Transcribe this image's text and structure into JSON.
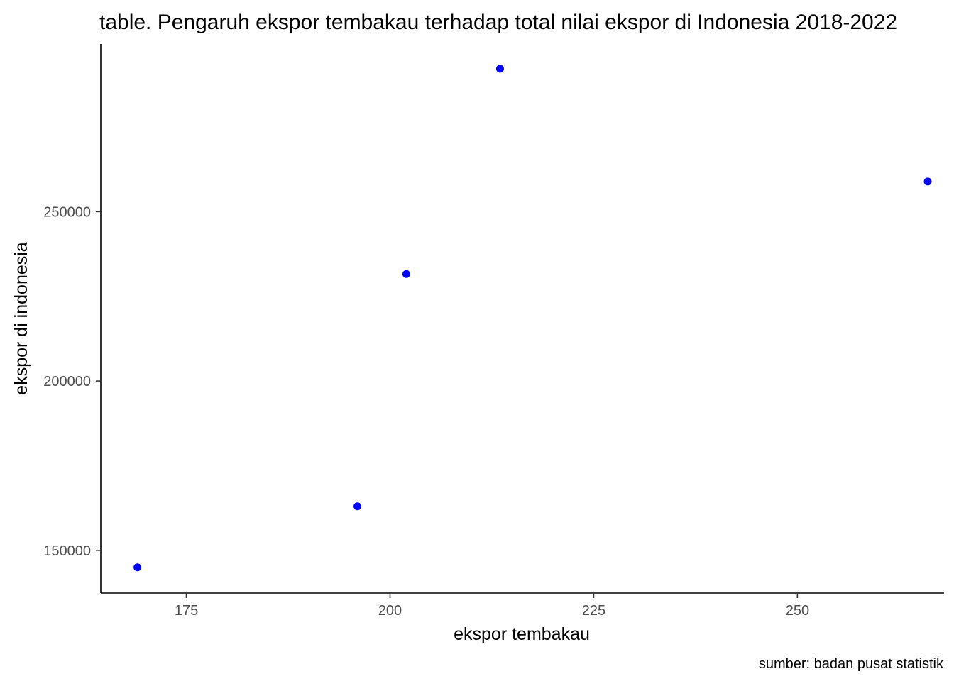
{
  "chart_data": {
    "type": "scatter",
    "title": "table. Pengaruh ekspor tembakau terhadap total nilai ekspor di Indonesia 2018-2022",
    "xlabel": "ekspor tembakau",
    "ylabel": "ekspor di indonesia",
    "caption": "sumber: badan pusat statistik",
    "xlim": [
      164.5,
      268
    ],
    "ylim": [
      137400,
      299500
    ],
    "xticks": [
      175,
      200,
      225,
      250
    ],
    "yticks": [
      150000,
      200000,
      250000
    ],
    "grid": false,
    "point_color": "#0000ff",
    "points": [
      {
        "x": 169.0,
        "y": 145000
      },
      {
        "x": 196.0,
        "y": 163000
      },
      {
        "x": 202.0,
        "y": 231600
      },
      {
        "x": 213.5,
        "y": 292200
      },
      {
        "x": 266.0,
        "y": 258900
      }
    ]
  }
}
